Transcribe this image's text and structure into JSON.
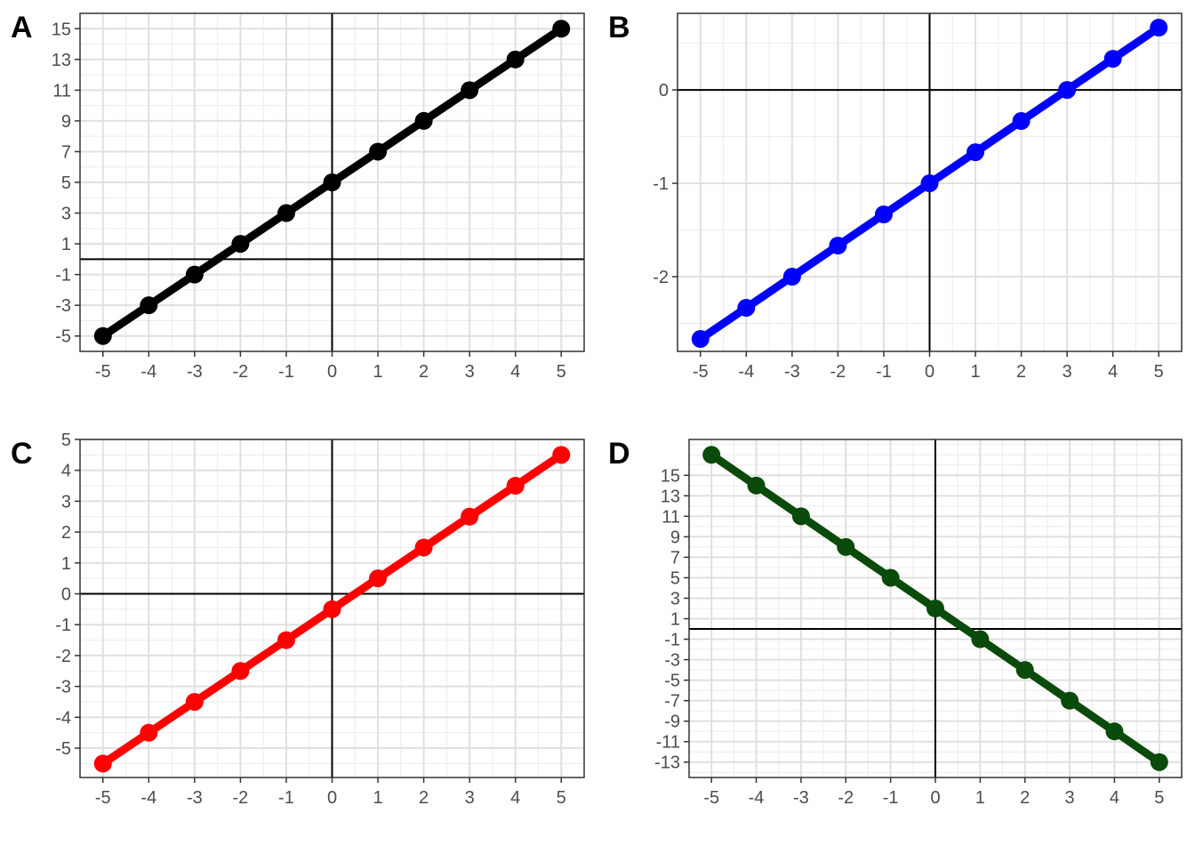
{
  "chart_data": [
    {
      "tag": "A",
      "type": "line",
      "color": "#000000",
      "x": [
        -5,
        -4,
        -3,
        -2,
        -1,
        0,
        1,
        2,
        3,
        4,
        5
      ],
      "y": [
        -5,
        -3,
        -1,
        1,
        3,
        5,
        7,
        9,
        11,
        13,
        15
      ],
      "xlim": [
        -5.5,
        5.5
      ],
      "ylim": [
        -6,
        16
      ],
      "xticks": [
        -5,
        -4,
        -3,
        -2,
        -1,
        0,
        1,
        2,
        3,
        4,
        5
      ],
      "yticks": [
        -5,
        -3,
        -1,
        1,
        3,
        5,
        7,
        9,
        11,
        13,
        15
      ],
      "xtick_labels": [
        "-5",
        "-4",
        "-3",
        "-2",
        "-1",
        "0",
        "1",
        "2",
        "3",
        "4",
        "5"
      ],
      "ytick_labels": [
        "-5",
        "-3",
        "-1",
        "1",
        "3",
        "5",
        "7",
        "9",
        "11",
        "13",
        "15"
      ],
      "grid": true,
      "xminor": 0.5,
      "yminor": 1
    },
    {
      "tag": "B",
      "type": "line",
      "color": "#0000ff",
      "x": [
        -5,
        -4,
        -3,
        -2,
        -1,
        0,
        1,
        2,
        3,
        4,
        5
      ],
      "y": [
        -2.667,
        -2.333,
        -2.0,
        -1.667,
        -1.333,
        -1.0,
        -0.667,
        -0.333,
        0.0,
        0.333,
        0.667
      ],
      "xlim": [
        -5.5,
        5.5
      ],
      "ylim": [
        -2.8,
        0.82
      ],
      "xticks": [
        -5,
        -4,
        -3,
        -2,
        -1,
        0,
        1,
        2,
        3,
        4,
        5
      ],
      "yticks": [
        -2,
        -1,
        0
      ],
      "xtick_labels": [
        "-5",
        "-4",
        "-3",
        "-2",
        "-1",
        "0",
        "1",
        "2",
        "3",
        "4",
        "5"
      ],
      "ytick_labels": [
        "-2",
        "-1",
        "0"
      ],
      "grid": true,
      "xminor": 0.5,
      "yminor": 0.5
    },
    {
      "tag": "C",
      "type": "line",
      "color": "#ff0000",
      "x": [
        -5,
        -4,
        -3,
        -2,
        -1,
        0,
        1,
        2,
        3,
        4,
        5
      ],
      "y": [
        -5.5,
        -4.5,
        -3.5,
        -2.5,
        -1.5,
        -0.5,
        0.5,
        1.5,
        2.5,
        3.5,
        4.5
      ],
      "xlim": [
        -5.5,
        5.5
      ],
      "ylim": [
        -5.95,
        5.0
      ],
      "xticks": [
        -5,
        -4,
        -3,
        -2,
        -1,
        0,
        1,
        2,
        3,
        4,
        5
      ],
      "yticks": [
        -5,
        -4,
        -3,
        -2,
        -1,
        0,
        1,
        2,
        3,
        4,
        5
      ],
      "xtick_labels": [
        "-5",
        "-4",
        "-3",
        "-2",
        "-1",
        "0",
        "1",
        "2",
        "3",
        "4",
        "5"
      ],
      "ytick_labels": [
        "-5",
        "-4",
        "-3",
        "-2",
        "-1",
        "0",
        "1",
        "2",
        "3",
        "4",
        "5"
      ],
      "grid": true,
      "xminor": 0.5,
      "yminor": 0.5
    },
    {
      "tag": "D",
      "type": "line",
      "color": "#0a4a0a",
      "x": [
        -5,
        -4,
        -3,
        -2,
        -1,
        0,
        1,
        2,
        3,
        4,
        5
      ],
      "y": [
        17,
        14,
        11,
        8,
        5,
        2,
        -1,
        -4,
        -7,
        -10,
        -13
      ],
      "xlim": [
        -5.5,
        5.5
      ],
      "ylim": [
        -14.5,
        18.5
      ],
      "xticks": [
        -5,
        -4,
        -3,
        -2,
        -1,
        0,
        1,
        2,
        3,
        4,
        5
      ],
      "yticks": [
        -13,
        -11,
        -9,
        -7,
        -5,
        -3,
        -1,
        1,
        3,
        5,
        7,
        9,
        11,
        13,
        15
      ],
      "xtick_labels": [
        "-5",
        "-4",
        "-3",
        "-2",
        "-1",
        "0",
        "1",
        "2",
        "3",
        "4",
        "5"
      ],
      "ytick_labels": [
        "-13",
        "-11",
        "-9",
        "-7",
        "-5",
        "-3",
        "-1",
        "1",
        "3",
        "5",
        "7",
        "9",
        "11",
        "13",
        "15"
      ],
      "grid": true,
      "xminor": 0.5,
      "yminor": 1
    }
  ]
}
